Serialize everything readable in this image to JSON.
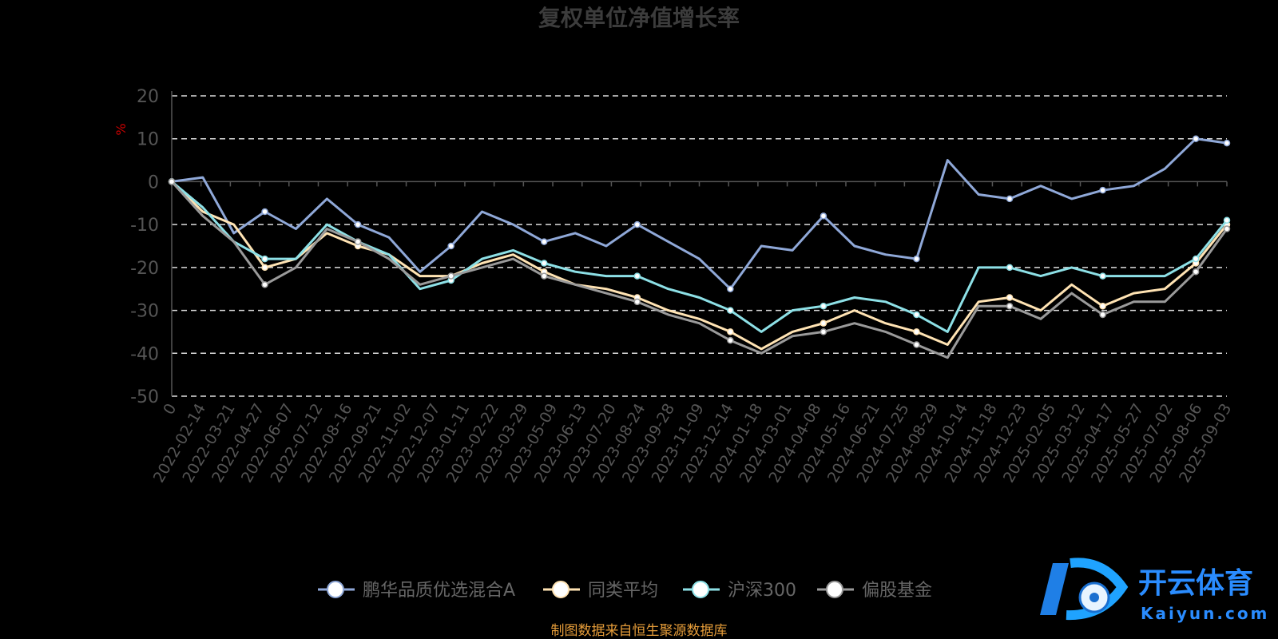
{
  "chart_data": {
    "type": "line",
    "title": "复权单位净值增长率",
    "ylabel": "%",
    "ylim": [
      -50,
      20
    ],
    "yticks": [
      "20",
      "10",
      "0",
      "-10",
      "-20",
      "-30",
      "-40",
      "-50"
    ],
    "xticks": [
      "0",
      "2022-02-14",
      "2022-03-21",
      "2022-04-27",
      "2022-06-07",
      "2022-07-12",
      "2022-08-16",
      "2022-09-21",
      "2022-11-02",
      "2022-12-07",
      "2023-01-11",
      "2023-02-22",
      "2023-03-29",
      "2023-05-09",
      "2023-06-13",
      "2023-07-20",
      "2023-08-24",
      "2023-09-28",
      "2023-11-09",
      "2023-12-14",
      "2024-01-18",
      "2024-03-01",
      "2024-04-08",
      "2024-05-16",
      "2024-06-21",
      "2024-07-25",
      "2024-08-29",
      "2024-10-14",
      "2024-11-18",
      "2024-12-23",
      "2025-02-05",
      "2025-03-12",
      "2025-04-17",
      "2025-05-27",
      "2025-07-02",
      "2025-08-06",
      "2025-09-03"
    ],
    "grid": "dashed horizontal",
    "legend_position": "bottom",
    "series": [
      {
        "name": "鹏华品质优选混合A",
        "color": "#8fa8d8",
        "values": [
          0,
          1,
          -12,
          -7,
          -11,
          -4,
          -10,
          -13,
          -21,
          -15,
          -7,
          -10,
          -14,
          -12,
          -15,
          -10,
          -14,
          -18,
          -25,
          -15,
          -16,
          -8,
          -15,
          -17,
          -18,
          5,
          -3,
          -4,
          -1,
          -4,
          -2,
          -1,
          3,
          10,
          9
        ]
      },
      {
        "name": "同类平均",
        "color": "#ffe3b3",
        "values": [
          0,
          -7,
          -10,
          -20,
          -18,
          -12,
          -15,
          -17,
          -22,
          -22,
          -19,
          -17,
          -21,
          -24,
          -25,
          -27,
          -30,
          -32,
          -35,
          -39,
          -35,
          -33,
          -30,
          -33,
          -35,
          -38,
          -28,
          -27,
          -30,
          -24,
          -29,
          -26,
          -25,
          -19,
          -10
        ]
      },
      {
        "name": "沪深300",
        "color": "#8de0e6",
        "values": [
          0,
          -6,
          -14,
          -18,
          -18,
          -10,
          -14,
          -17,
          -25,
          -23,
          -18,
          -16,
          -19,
          -21,
          -22,
          -22,
          -25,
          -27,
          -30,
          -35,
          -30,
          -29,
          -27,
          -28,
          -31,
          -35,
          -20,
          -20,
          -22,
          -20,
          -22,
          -22,
          -22,
          -18,
          -9
        ]
      },
      {
        "name": "偏股基金",
        "color": "#9a9a9a",
        "values": [
          0,
          -8,
          -14,
          -24,
          -20,
          -11,
          -14,
          -18,
          -24,
          -22,
          -20,
          -18,
          -22,
          -24,
          -26,
          -28,
          -31,
          -33,
          -37,
          -40,
          -36,
          -35,
          -33,
          -35,
          -38,
          -41,
          -29,
          -29,
          -32,
          -26,
          -31,
          -28,
          -28,
          -21,
          -11
        ]
      }
    ]
  },
  "source_note": "制图数据来自恒生聚源数据库",
  "watermark": {
    "brand": "开云体育",
    "domain": "Kaiyun.com"
  }
}
